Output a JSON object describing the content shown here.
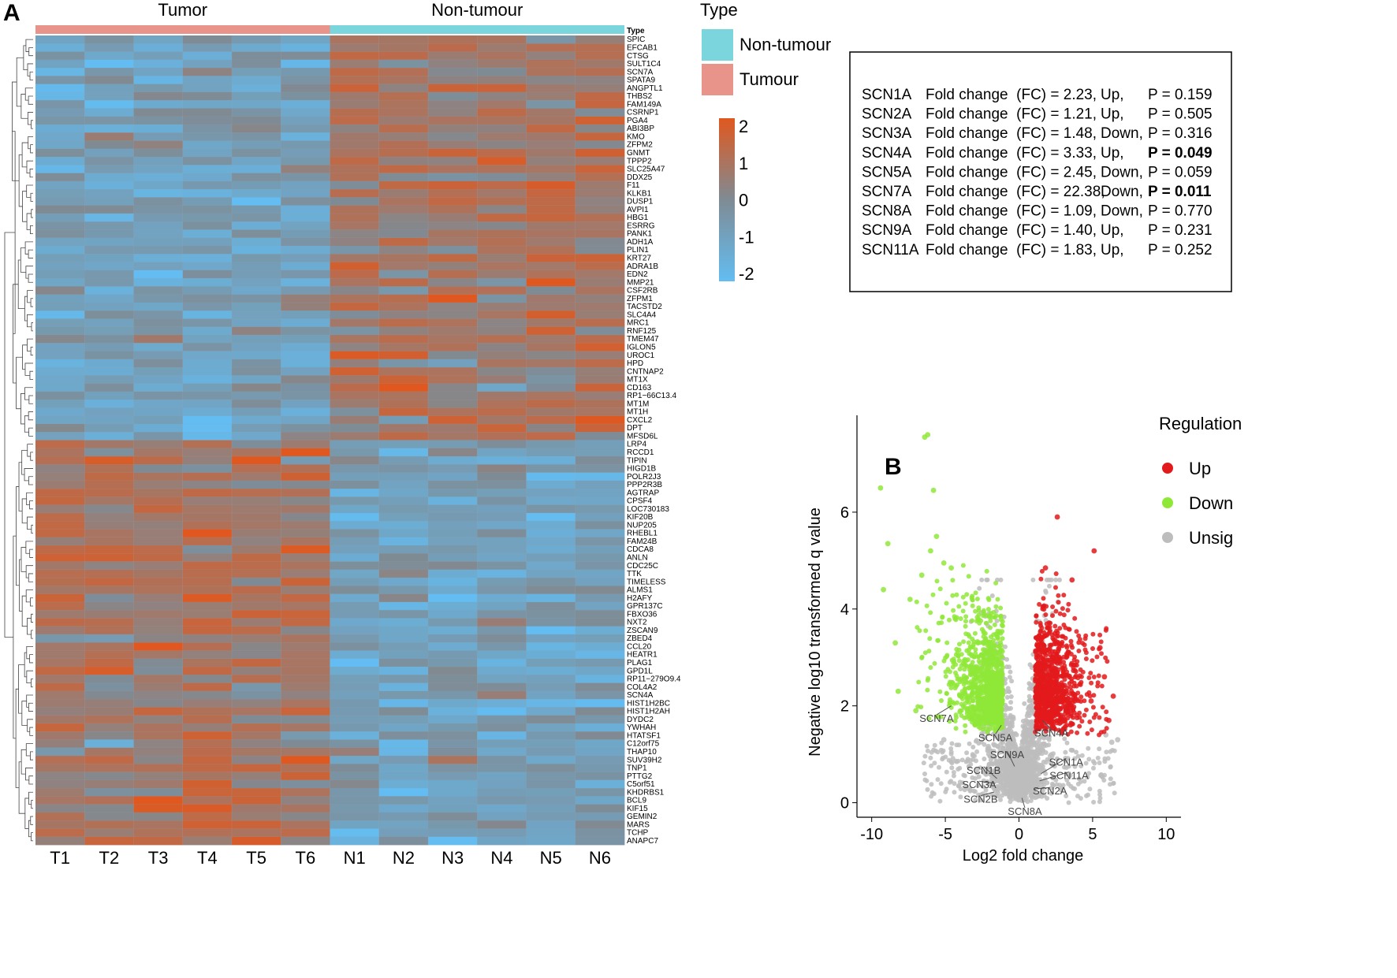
{
  "panel_a_label": "A",
  "panel_b_label": "B",
  "chart_data": [
    {
      "type": "heatmap",
      "title": "",
      "groups": [
        {
          "name": "Tumor",
          "color": "#e8948a",
          "samples": [
            "T1",
            "T2",
            "T3",
            "T4",
            "T5",
            "T6"
          ]
        },
        {
          "name": "Non-tumour",
          "color": "#7ad5dc",
          "samples": [
            "N1",
            "N2",
            "N3",
            "N4",
            "N5",
            "N6"
          ]
        }
      ],
      "annotation_row_label": "Type",
      "legend": {
        "title": "Type",
        "entries": [
          {
            "label": "Non-tumour",
            "color": "#7ad5dc"
          },
          {
            "label": "Tumour",
            "color": "#e8948a"
          }
        ]
      },
      "color_scale": {
        "min": -2,
        "max": 2,
        "ticks": [
          "2",
          "1",
          "0",
          "-1",
          "-2"
        ],
        "low_color": "#63bdf2",
        "mid_color": "#7f8b94",
        "high_color": "#e0581f"
      },
      "genes": [
        "SPIC",
        "EFCAB1",
        "CTSG",
        "SULT1C4",
        "SCN7A",
        "SPATA9",
        "ANGPTL1",
        "THBS2",
        "FAM149A",
        "CSRNP1",
        "PGA4",
        "ABI3BP",
        "KMO",
        "ZFPM2",
        "GNMT",
        "TPPP2",
        "SLC25A47",
        "DDX25",
        "F11",
        "KLKB1",
        "DUSP1",
        "AVPI1",
        "HBG1",
        "ESRRG",
        "PANK1",
        "ADH1A",
        "PLIN1",
        "KRT27",
        "ADRA1B",
        "EDN2",
        "MMP21",
        "CSF2RB",
        "ZFPM1",
        "TACSTD2",
        "SLC4A4",
        "MRC1",
        "RNF125",
        "TMEM47",
        "IGLON5",
        "UROC1",
        "HPD",
        "CNTNAP2",
        "MT1X",
        "CD163",
        "RP1−66C13.4",
        "MT1M",
        "MT1H",
        "CXCL2",
        "DPT",
        "MFSD6L",
        "LRP4",
        "RCCD1",
        "TIPIN",
        "HIGD1B",
        "POLR2J3",
        "PPP2R3B",
        "AGTRAP",
        "CPSF4",
        "LOC730183",
        "KIF20B",
        "NUP205",
        "RHEBL1",
        "FAM24B",
        "CDCA8",
        "ANLN",
        "CDC25C",
        "TTK",
        "TIMELESS",
        "ALMS1",
        "H2AFY",
        "GPR137C",
        "FBXO36",
        "NXT2",
        "ZSCAN9",
        "ZBED4",
        "CCL20",
        "HEATR1",
        "PLAG1",
        "GPD1L",
        "RP11−279O9.4",
        "COL4A2",
        "SCN4A",
        "HIST1H2BC",
        "HIST1H2AH",
        "DYDC2",
        "YWHAH",
        "HTATSF1",
        "C12orf75",
        "THAP10",
        "SUV39H2",
        "TNP1",
        "PTTG2",
        "C5orf51",
        "KHDRBS1",
        "BCL9",
        "KIF15",
        "GEMIN2",
        "MARS",
        "TCHP",
        "ANAPC7"
      ],
      "pattern": "first 50 genes low in tumour / high in non-tumour; last 50 genes high in tumour / low in non-tumour"
    },
    {
      "type": "scatter",
      "title": "",
      "xlabel": "Log2 fold change",
      "ylabel": "Negative log10 transformed q value",
      "xlim": [
        -11,
        11
      ],
      "ylim": [
        -0.3,
        8
      ],
      "xticks": [
        "-10",
        "-5",
        "0",
        "5",
        "10"
      ],
      "yticks": [
        "0",
        "2",
        "4",
        "6"
      ],
      "legend": {
        "title": "Regulation",
        "entries": [
          {
            "label": "Up",
            "color": "#e31a1c"
          },
          {
            "label": "Down",
            "color": "#8fe838"
          },
          {
            "label": "Unsig",
            "color": "#bdbdbd"
          }
        ]
      },
      "outlier_points": {
        "down": [
          [
            -6.4,
            7.55
          ],
          [
            -6.2,
            7.6
          ],
          [
            -9.4,
            6.5
          ],
          [
            -5.8,
            6.45
          ],
          [
            -8.9,
            5.35
          ],
          [
            -5.6,
            5.5
          ],
          [
            -6.0,
            5.2
          ],
          [
            -9.2,
            4.4
          ],
          [
            -8.4,
            3.3
          ],
          [
            -8.2,
            2.3
          ],
          [
            -7.4,
            4.2
          ],
          [
            -6.6,
            4.7
          ],
          [
            -5.1,
            4.95
          ],
          [
            -4.6,
            4.85
          ],
          [
            -7.0,
            1.9
          ]
        ],
        "up": [
          [
            2.6,
            5.9
          ],
          [
            5.1,
            5.2
          ],
          [
            6.4,
            2.2
          ],
          [
            5.8,
            2.6
          ],
          [
            5.5,
            3.2
          ],
          [
            4.9,
            2.1
          ],
          [
            1.8,
            4.85
          ],
          [
            3.6,
            4.6
          ],
          [
            6.1,
            1.7
          ]
        ],
        "unsig": [
          [
            6.7,
            1.3
          ],
          [
            6.3,
            1.25
          ],
          [
            -5.1,
            1.3
          ],
          [
            5.9,
            1.4
          ]
        ]
      },
      "gene_labels": [
        "SCN7A",
        "SCN5A",
        "SCN4A",
        "SCN9A",
        "SCN1A",
        "SCN1B",
        "SCN11A",
        "SCN3A",
        "SCN2A",
        "SCN2B",
        "SCN8A"
      ]
    }
  ],
  "fold_change_table": {
    "rows": [
      {
        "gene": "SCN1A",
        "fc": "Fold change  (FC) = 2.23,",
        "dir": "Up,",
        "p": "P = 0.159",
        "bold": false
      },
      {
        "gene": "SCN2A",
        "fc": "Fold change  (FC) = 1.21,",
        "dir": "Up,",
        "p": "P = 0.505",
        "bold": false
      },
      {
        "gene": "SCN3A",
        "fc": "Fold change  (FC) = 1.48,",
        "dir": "Down,",
        "p": "P = 0.316",
        "bold": false
      },
      {
        "gene": "SCN4A",
        "fc": "Fold change  (FC) = 3.33,",
        "dir": "Up,",
        "p": "P = 0.049",
        "bold": true
      },
      {
        "gene": "SCN5A",
        "fc": "Fold change  (FC) = 2.45,",
        "dir": "Down,",
        "p": "P = 0.059",
        "bold": false
      },
      {
        "gene": "SCN7A",
        "fc": "Fold change  (FC) = 22.38,",
        "dir": "Down,",
        "p": "P = 0.011",
        "bold": true
      },
      {
        "gene": "SCN8A",
        "fc": "Fold change  (FC) = 1.09,",
        "dir": "Down,",
        "p": "P = 0.770",
        "bold": false
      },
      {
        "gene": "SCN9A",
        "fc": "Fold change  (FC) = 1.40,",
        "dir": "Up,",
        "p": "P = 0.231",
        "bold": false
      },
      {
        "gene": "SCN11A",
        "fc": "Fold change  (FC) = 1.83,",
        "dir": "Up,",
        "p": "P = 0.252",
        "bold": false
      }
    ]
  }
}
